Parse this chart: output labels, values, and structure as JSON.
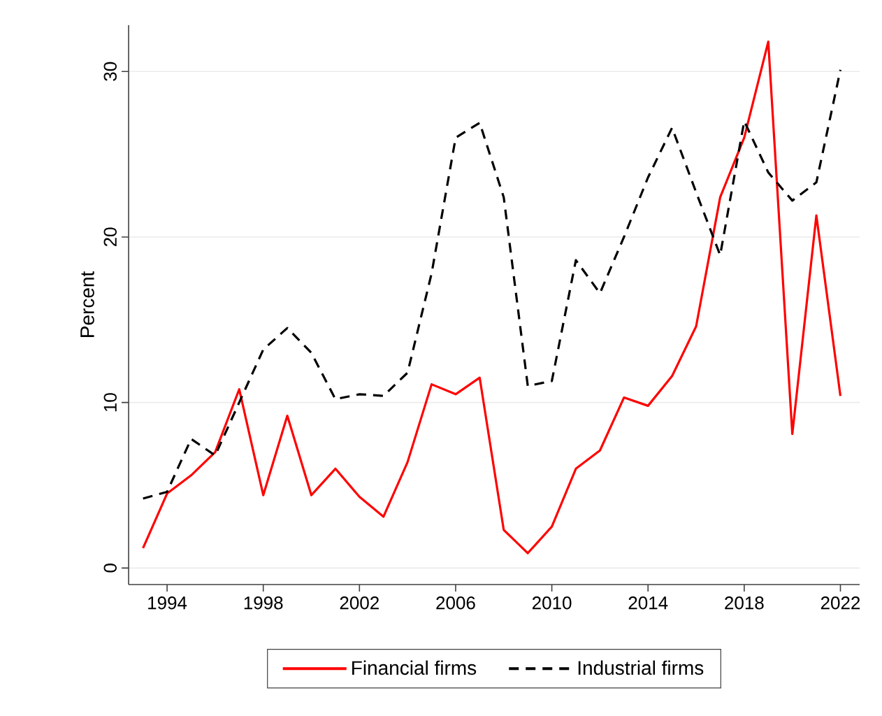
{
  "chart_data": {
    "type": "line",
    "ylabel": "Percent",
    "x": [
      1993,
      1994,
      1995,
      1996,
      1997,
      1998,
      1999,
      2000,
      2001,
      2002,
      2003,
      2004,
      2005,
      2006,
      2007,
      2008,
      2009,
      2010,
      2011,
      2012,
      2013,
      2014,
      2015,
      2016,
      2017,
      2018,
      2019,
      2020,
      2021,
      2022
    ],
    "series": [
      {
        "name": "Financial firms",
        "color": "#ff0000",
        "line_style": "solid",
        "values": [
          1.2,
          4.5,
          5.6,
          7.0,
          10.8,
          4.4,
          9.2,
          4.4,
          6.0,
          4.3,
          3.1,
          6.4,
          11.1,
          10.5,
          11.5,
          2.3,
          0.9,
          2.5,
          6.0,
          7.1,
          10.3,
          9.8,
          11.6,
          14.6,
          22.4,
          26.0,
          31.8,
          8.1,
          21.3,
          10.4
        ]
      },
      {
        "name": "Industrial firms",
        "color": "#000000",
        "line_style": "dashed",
        "values": [
          4.2,
          4.6,
          7.8,
          6.8,
          10.0,
          13.2,
          14.5,
          13.0,
          10.2,
          10.5,
          10.4,
          11.8,
          17.8,
          26.0,
          26.9,
          22.4,
          11.0,
          11.3,
          18.6,
          16.6,
          20.0,
          23.6,
          26.6,
          22.7,
          18.9,
          27.0,
          23.9,
          22.2,
          23.3,
          30.1
        ]
      }
    ],
    "xlim": [
      1992.4,
      2022.8
    ],
    "ylim": [
      -1,
      32.8
    ],
    "xticks": [
      1994,
      1998,
      2002,
      2006,
      2010,
      2014,
      2018,
      2022
    ],
    "yticks": [
      0,
      10,
      20,
      30
    ],
    "grid": "y",
    "legend": "bottom",
    "marker": "none"
  }
}
